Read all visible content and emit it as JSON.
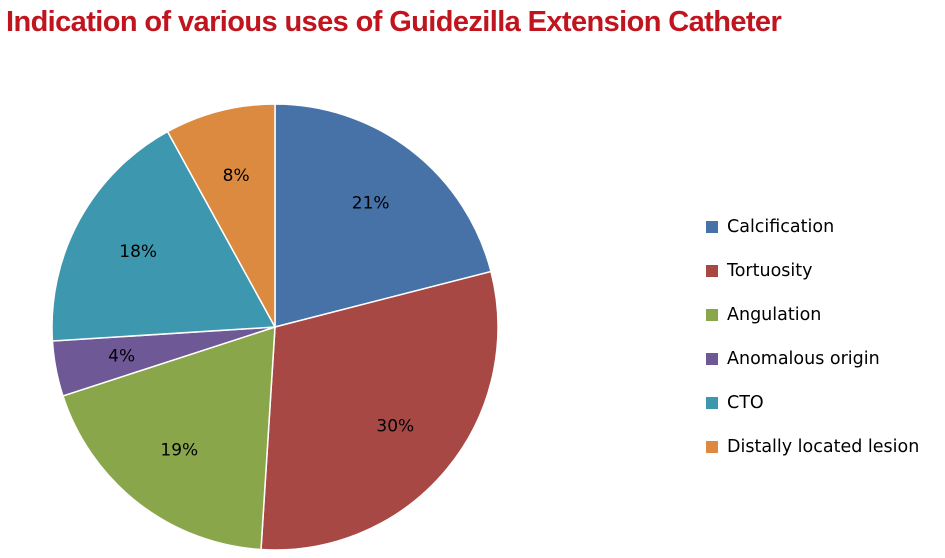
{
  "chart_data": {
    "type": "pie",
    "title": "Indication of various uses of Guidezilla Extension Catheter",
    "legend_position": "right",
    "slices": [
      {
        "label": "Calcification",
        "value": 21,
        "display": "21%",
        "color": "#4672a8"
      },
      {
        "label": "Tortuosity",
        "value": 30,
        "display": "30%",
        "color": "#a84845"
      },
      {
        "label": "Angulation",
        "value": 19,
        "display": "19%",
        "color": "#8aa64b"
      },
      {
        "label": "Anomalous origin",
        "value": 4,
        "display": "4%",
        "color": "#6e5896"
      },
      {
        "label": "CTO",
        "value": 18,
        "display": "18%",
        "color": "#3d97ae"
      },
      {
        "label": "Distally located lesion",
        "value": 8,
        "display": "8%",
        "color": "#dc8a40"
      }
    ]
  }
}
